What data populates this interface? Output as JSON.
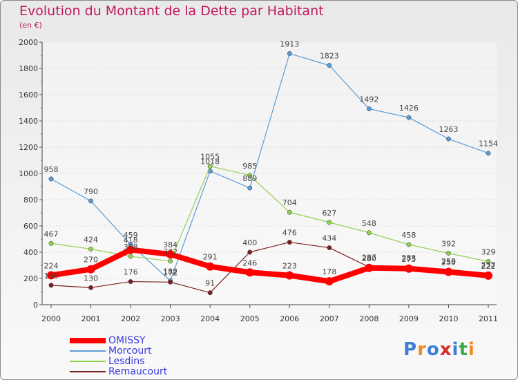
{
  "chart_data": {
    "type": "line",
    "title": "Evolution du Montant de la Dette par Habitant",
    "subtitle": "(en €)",
    "xlabel": "",
    "ylabel": "",
    "ylim": [
      0,
      2000
    ],
    "yticks": [
      "0",
      "200",
      "400",
      "600",
      "800",
      "1000",
      "1200",
      "1400",
      "1600",
      "1800",
      "2000"
    ],
    "categories": [
      "2000",
      "2001",
      "2002",
      "2003",
      "2004",
      "2005",
      "2006",
      "2007",
      "2008",
      "2009",
      "2010",
      "2011"
    ],
    "series": [
      {
        "name": "OMISSY",
        "color": "#ff0000",
        "values": [
          224,
          270,
          418,
          384,
          291,
          246,
          223,
          178,
          280,
          275,
          250,
          222
        ]
      },
      {
        "name": "Morcourt",
        "color": "#5b9bd5",
        "values": [
          958,
          790,
          459,
          182,
          1018,
          889,
          1913,
          1823,
          1492,
          1426,
          1263,
          1154
        ]
      },
      {
        "name": "Lesdins",
        "color": "#92d050",
        "values": [
          467,
          424,
          368,
          332,
          1055,
          985,
          704,
          627,
          548,
          458,
          392,
          329
        ]
      },
      {
        "name": "Remaucourt",
        "color": "#7b2020",
        "values": [
          148,
          130,
          176,
          172,
          91,
          400,
          476,
          434,
          287,
          283,
          259,
          232
        ]
      }
    ]
  },
  "logo": {
    "text": "Proxiti",
    "letters": [
      "P",
      "r",
      "o",
      "x",
      "i",
      "t",
      "i"
    ],
    "colors": [
      "#3b7fd6",
      "#f08a1c",
      "#3b7fd6",
      "#d62c2c",
      "#3b7fd6",
      "#39a845",
      "#f08a1c"
    ]
  }
}
